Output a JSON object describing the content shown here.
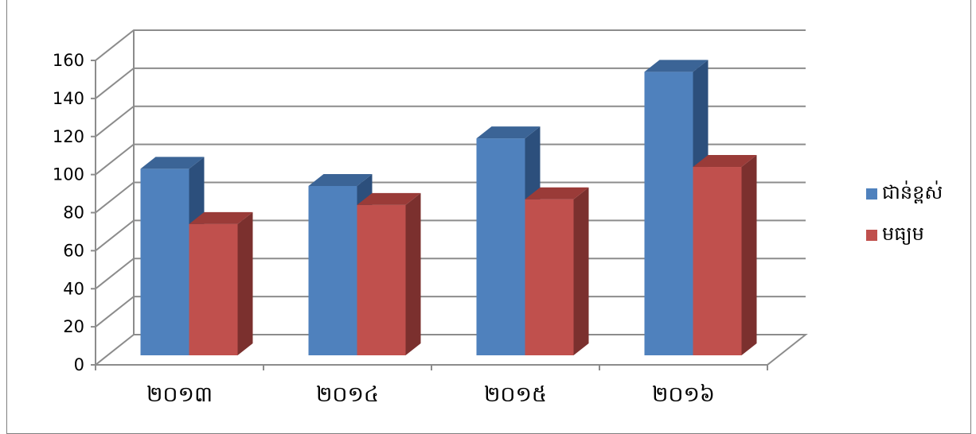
{
  "chart_data": {
    "type": "bar",
    "categories": [
      "២០១៣",
      "២០១៤",
      "២០១៥",
      "២០១៦"
    ],
    "series": [
      {
        "name": "ជាន់ខ្ពស់",
        "values": [
          98,
          89,
          114,
          149
        ],
        "color": "#4f81bd",
        "side_color": "#2c4f7c",
        "top_color": "#3b6496"
      },
      {
        "name": "មធ្យម",
        "values": [
          69,
          79,
          82,
          99
        ],
        "color": "#c0504d",
        "side_color": "#7b302e",
        "top_color": "#9a3b38"
      }
    ],
    "y_ticks": [
      "0",
      "20",
      "40",
      "60",
      "80",
      "100",
      "120",
      "140",
      "160"
    ],
    "ylim": [
      0,
      160
    ],
    "grid": true,
    "legend_position": "right",
    "style": "3d-clustered-column"
  }
}
